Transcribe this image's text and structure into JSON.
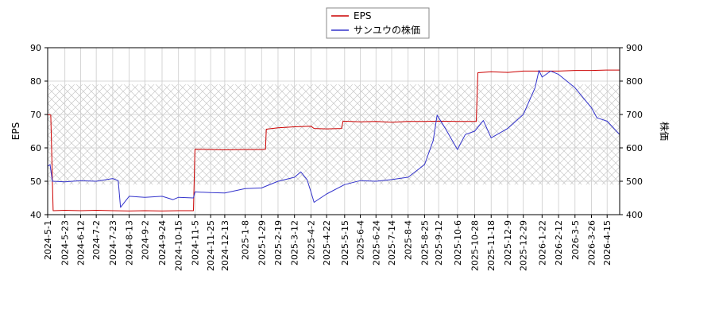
{
  "chart_data": {
    "type": "line",
    "title": "",
    "legend": {
      "placement": "top-center",
      "entries": [
        "EPS",
        "サンユウの株価"
      ]
    },
    "grid": true,
    "hatched_band": {
      "axis": "right",
      "range": [
        490,
        790
      ]
    },
    "x_ticks": [
      "2024-5-1",
      "2024-5-23",
      "2024-6-12",
      "2024-7-2",
      "2024-7-23",
      "2024-8-13",
      "2024-9-2",
      "2024-9-24",
      "2024-10-15",
      "2024-11-5",
      "2024-11-25",
      "2024-12-13",
      "2025-1-8",
      "2025-1-29",
      "2025-2-19",
      "2025-3-12",
      "2025-4-2",
      "2025-4-22",
      "2025-5-15",
      "2025-6-4",
      "2025-6-24",
      "2025-7-14",
      "2025-8-4",
      "2025-8-25",
      "2025-9-12",
      "2025-10-6",
      "2025-10-28",
      "2025-11-18",
      "2025-12-9",
      "2025-12-29",
      "2026-1-22",
      "2026-2-12",
      "2026-3-5",
      "2026-3-26",
      "2026-4-15"
    ],
    "x_range": [
      "2024-5-1",
      "2026-5-1"
    ],
    "left_axis": {
      "label": "EPS",
      "range": [
        40,
        90
      ],
      "ticks": [
        40,
        50,
        60,
        70,
        80,
        90
      ]
    },
    "right_axis": {
      "label": "株価",
      "range": [
        400,
        900
      ],
      "ticks": [
        400,
        500,
        600,
        700,
        800,
        900
      ]
    },
    "series": [
      {
        "name": "EPS",
        "axis": "left",
        "color": "#cc0000",
        "points": [
          [
            "2024-5-1",
            70.0
          ],
          [
            "2024-5-5",
            69.8
          ],
          [
            "2024-5-8",
            41.2
          ],
          [
            "2024-5-23",
            41.3
          ],
          [
            "2024-6-12",
            41.2
          ],
          [
            "2024-7-2",
            41.3
          ],
          [
            "2024-7-23",
            41.2
          ],
          [
            "2024-8-13",
            41.1
          ],
          [
            "2024-9-2",
            41.2
          ],
          [
            "2024-9-24",
            41.1
          ],
          [
            "2024-10-15",
            41.2
          ],
          [
            "2024-11-3",
            41.2
          ],
          [
            "2024-11-5",
            59.6
          ],
          [
            "2024-11-25",
            59.5
          ],
          [
            "2024-12-13",
            59.4
          ],
          [
            "2025-1-8",
            59.5
          ],
          [
            "2025-1-29",
            59.5
          ],
          [
            "2025-2-3",
            59.6
          ],
          [
            "2025-2-4",
            65.6
          ],
          [
            "2025-2-19",
            66.0
          ],
          [
            "2025-3-12",
            66.3
          ],
          [
            "2025-4-2",
            66.5
          ],
          [
            "2025-4-6",
            65.8
          ],
          [
            "2025-4-22",
            65.7
          ],
          [
            "2025-5-11",
            65.8
          ],
          [
            "2025-5-13",
            68.0
          ],
          [
            "2025-6-4",
            67.8
          ],
          [
            "2025-6-24",
            67.9
          ],
          [
            "2025-7-14",
            67.7
          ],
          [
            "2025-8-4",
            67.9
          ],
          [
            "2025-8-25",
            67.9
          ],
          [
            "2025-9-12",
            68.0
          ],
          [
            "2025-10-6",
            67.9
          ],
          [
            "2025-10-28",
            67.9
          ],
          [
            "2025-10-30",
            67.9
          ],
          [
            "2025-11-1",
            82.5
          ],
          [
            "2025-11-18",
            82.8
          ],
          [
            "2025-12-9",
            82.6
          ],
          [
            "2025-12-29",
            83.0
          ],
          [
            "2026-1-22",
            83.0
          ],
          [
            "2026-2-12",
            83.0
          ],
          [
            "2026-3-5",
            83.2
          ],
          [
            "2026-3-26",
            83.2
          ],
          [
            "2026-4-15",
            83.3
          ],
          [
            "2026-5-1",
            83.3
          ]
        ]
      },
      {
        "name": "サンユウの株価",
        "axis": "right",
        "color": "#3333cc",
        "points": [
          [
            "2024-5-1",
            545
          ],
          [
            "2024-5-4",
            550
          ],
          [
            "2024-5-7",
            500
          ],
          [
            "2024-5-23",
            498
          ],
          [
            "2024-6-12",
            502
          ],
          [
            "2024-7-2",
            500
          ],
          [
            "2024-7-23",
            508
          ],
          [
            "2024-7-30",
            502
          ],
          [
            "2024-8-2",
            422
          ],
          [
            "2024-8-13",
            455
          ],
          [
            "2024-9-2",
            452
          ],
          [
            "2024-9-24",
            455
          ],
          [
            "2024-10-8",
            445
          ],
          [
            "2024-10-15",
            452
          ],
          [
            "2024-11-3",
            450
          ],
          [
            "2024-11-5",
            468
          ],
          [
            "2024-11-25",
            466
          ],
          [
            "2024-12-13",
            465
          ],
          [
            "2025-1-8",
            478
          ],
          [
            "2025-1-29",
            480
          ],
          [
            "2025-2-19",
            500
          ],
          [
            "2025-3-12",
            512
          ],
          [
            "2025-3-20",
            528
          ],
          [
            "2025-3-28",
            505
          ],
          [
            "2025-4-2",
            468
          ],
          [
            "2025-4-6",
            437
          ],
          [
            "2025-4-22",
            462
          ],
          [
            "2025-5-15",
            490
          ],
          [
            "2025-6-4",
            502
          ],
          [
            "2025-6-24",
            500
          ],
          [
            "2025-7-14",
            505
          ],
          [
            "2025-8-4",
            512
          ],
          [
            "2025-8-25",
            550
          ],
          [
            "2025-9-5",
            622
          ],
          [
            "2025-9-10",
            698
          ],
          [
            "2025-9-20",
            660
          ],
          [
            "2025-10-6",
            595
          ],
          [
            "2025-10-16",
            640
          ],
          [
            "2025-10-28",
            650
          ],
          [
            "2025-11-8",
            682
          ],
          [
            "2025-11-18",
            630
          ],
          [
            "2025-12-9",
            658
          ],
          [
            "2025-12-29",
            700
          ],
          [
            "2026-1-13",
            780
          ],
          [
            "2026-1-18",
            832
          ],
          [
            "2026-1-22",
            812
          ],
          [
            "2026-2-2",
            830
          ],
          [
            "2026-2-12",
            820
          ],
          [
            "2026-3-5",
            780
          ],
          [
            "2026-3-26",
            720
          ],
          [
            "2026-4-2",
            690
          ],
          [
            "2026-4-15",
            680
          ],
          [
            "2026-5-1",
            640
          ]
        ]
      }
    ]
  }
}
